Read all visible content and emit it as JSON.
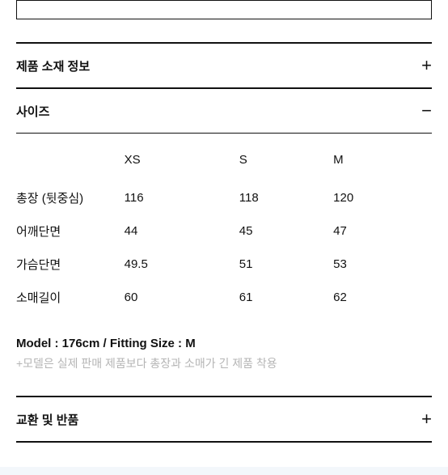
{
  "sections": {
    "material": {
      "title": "제품 소재 정보",
      "toggle": "+"
    },
    "size": {
      "title": "사이즈",
      "toggle": "−"
    },
    "exchange": {
      "title": "교환 및 반품",
      "toggle": "+"
    }
  },
  "size_table": {
    "columns": [
      "",
      "XS",
      "S",
      "M"
    ],
    "rows": [
      [
        "총장 (뒷중심)",
        "116",
        "118",
        "120"
      ],
      [
        "어깨단면",
        "44",
        "45",
        "47"
      ],
      [
        "가슴단면",
        "49.5",
        "51",
        "53"
      ],
      [
        "소매길이",
        "60",
        "61",
        "62"
      ]
    ]
  },
  "model_info": "Model : 176cm / Fitting Size : M",
  "model_note": "+모델은 실제 판매 제품보다 총장과 소매가 긴 제품 착용"
}
